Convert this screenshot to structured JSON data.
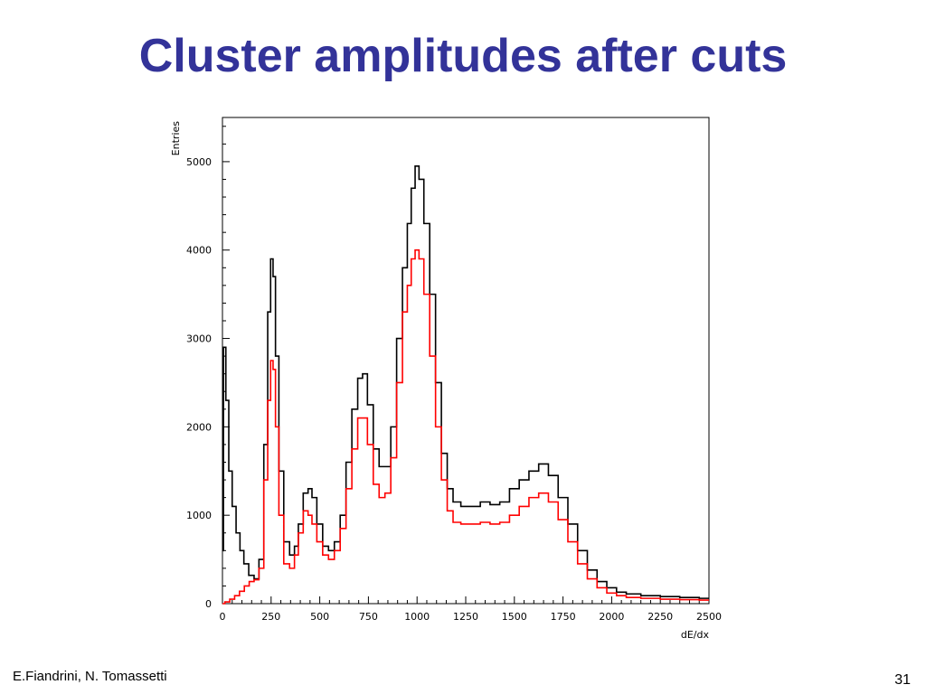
{
  "slide": {
    "title": "Cluster amplitudes after cuts",
    "authors": "E.Fiandrini, N. Tomassetti",
    "page_number": "31",
    "title_color": "#333399"
  },
  "chart_data": {
    "type": "line",
    "style": "histogram-step",
    "title": "",
    "xlabel": "dE/dx",
    "ylabel": "Entries",
    "xlim": [
      0,
      2500
    ],
    "ylim": [
      0,
      5500
    ],
    "x_ticks": [
      0,
      250,
      500,
      750,
      1000,
      1250,
      1500,
      1750,
      2000,
      2250,
      2500
    ],
    "y_ticks": [
      0,
      1000,
      2000,
      3000,
      4000,
      5000
    ],
    "grid": false,
    "legend": "none",
    "series": [
      {
        "color": "#000000",
        "x": [
          0,
          10,
          25,
          40,
          60,
          80,
          100,
          120,
          150,
          175,
          200,
          225,
          240,
          255,
          265,
          280,
          300,
          330,
          360,
          380,
          400,
          430,
          450,
          470,
          500,
          530,
          560,
          590,
          620,
          650,
          680,
          710,
          730,
          760,
          790,
          820,
          850,
          880,
          910,
          940,
          960,
          980,
          1000,
          1020,
          1050,
          1080,
          1110,
          1140,
          1170,
          1200,
          1250,
          1300,
          1350,
          1400,
          1450,
          1500,
          1550,
          1600,
          1650,
          1700,
          1750,
          1800,
          1850,
          1900,
          1950,
          2000,
          2050,
          2100,
          2200,
          2300,
          2400,
          2500
        ],
        "y": [
          600,
          2900,
          2300,
          1500,
          1100,
          800,
          600,
          450,
          320,
          280,
          500,
          1800,
          3300,
          3900,
          3700,
          2800,
          1500,
          700,
          550,
          650,
          900,
          1250,
          1300,
          1200,
          900,
          650,
          600,
          700,
          1000,
          1600,
          2200,
          2550,
          2600,
          2250,
          1750,
          1550,
          1550,
          2000,
          3000,
          3800,
          4300,
          4700,
          4950,
          4800,
          4300,
          3500,
          2500,
          1700,
          1300,
          1150,
          1100,
          1100,
          1150,
          1120,
          1150,
          1300,
          1400,
          1500,
          1580,
          1450,
          1200,
          900,
          600,
          380,
          250,
          180,
          130,
          110,
          90,
          80,
          70,
          60
        ]
      },
      {
        "color": "#ff0000",
        "x": [
          0,
          25,
          50,
          75,
          100,
          125,
          150,
          175,
          200,
          225,
          240,
          255,
          265,
          280,
          300,
          330,
          360,
          380,
          400,
          430,
          450,
          470,
          500,
          530,
          560,
          590,
          620,
          650,
          680,
          710,
          730,
          760,
          790,
          820,
          850,
          880,
          910,
          940,
          960,
          980,
          1000,
          1020,
          1050,
          1080,
          1110,
          1140,
          1170,
          1200,
          1250,
          1300,
          1350,
          1400,
          1450,
          1500,
          1550,
          1600,
          1650,
          1700,
          1750,
          1800,
          1850,
          1900,
          1950,
          2000,
          2050,
          2100,
          2200,
          2300,
          2400,
          2500
        ],
        "y": [
          0,
          20,
          50,
          90,
          140,
          200,
          250,
          270,
          400,
          1400,
          2300,
          2750,
          2650,
          2000,
          1000,
          450,
          400,
          550,
          800,
          1050,
          1000,
          900,
          700,
          550,
          500,
          600,
          850,
          1300,
          1750,
          2100,
          2100,
          1800,
          1350,
          1200,
          1250,
          1650,
          2500,
          3300,
          3600,
          3900,
          4000,
          3900,
          3500,
          2800,
          2000,
          1400,
          1050,
          920,
          900,
          900,
          920,
          900,
          920,
          1000,
          1100,
          1200,
          1250,
          1150,
          950,
          700,
          450,
          280,
          180,
          120,
          90,
          70,
          60,
          50,
          45,
          40
        ]
      }
    ]
  }
}
